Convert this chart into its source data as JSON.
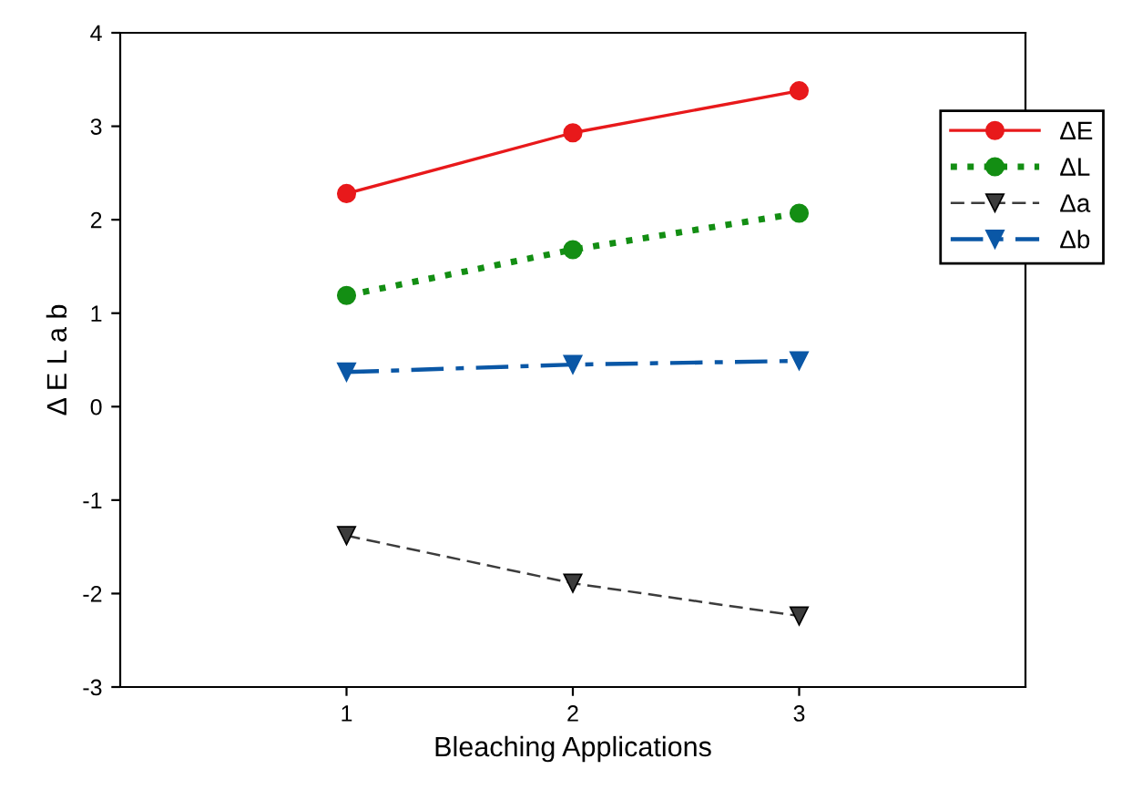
{
  "chart_data": {
    "type": "line",
    "xlabel": "Bleaching Applications",
    "ylabel": "Δ E L a b",
    "x": [
      1,
      2,
      3
    ],
    "xlim": [
      0,
      4
    ],
    "xticks": [
      1,
      2,
      3
    ],
    "ylim": [
      -3,
      4
    ],
    "yticks": [
      -3,
      -2,
      -1,
      0,
      1,
      2,
      3,
      4
    ],
    "grid": false,
    "legend": "top right",
    "series": [
      {
        "name": "ΔE",
        "color": "#e8191b",
        "values": [
          2.28,
          2.93,
          3.38
        ],
        "marker": "circle",
        "line_style": "solid"
      },
      {
        "name": "ΔL",
        "color": "#138e13",
        "values": [
          1.19,
          1.68,
          2.07
        ],
        "marker": "circle",
        "line_style": "dotted"
      },
      {
        "name": "Δa",
        "color": "#3c3c3c",
        "values": [
          -1.38,
          -1.89,
          -2.24
        ],
        "marker": "triangle_down",
        "line_style": "dashed"
      },
      {
        "name": "Δb",
        "color": "#0a57a6",
        "values": [
          0.37,
          0.45,
          0.49
        ],
        "marker": "triangle_down",
        "line_style": "dashdot"
      }
    ]
  }
}
